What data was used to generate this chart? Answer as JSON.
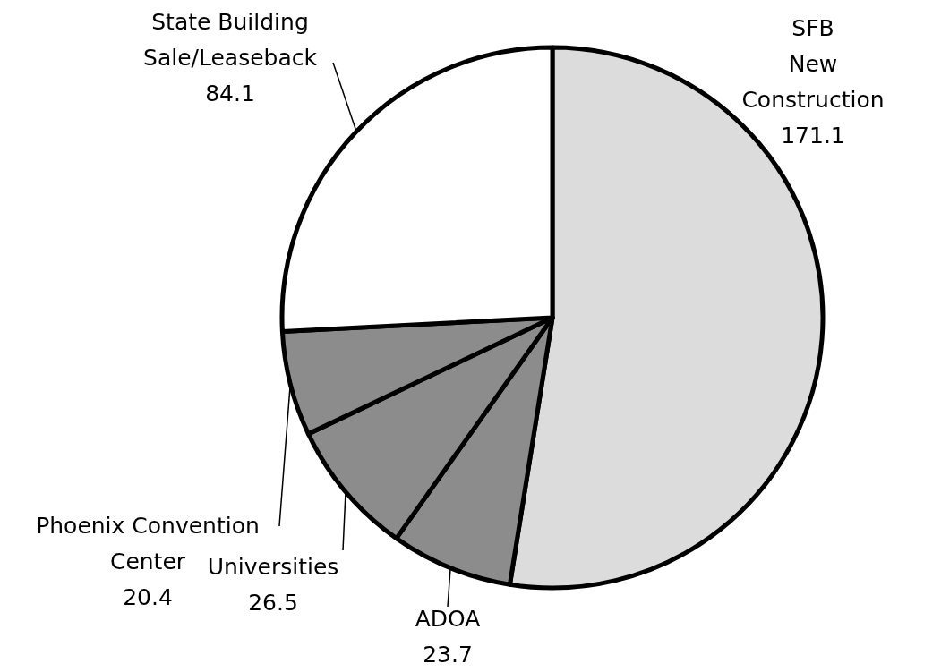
{
  "chart_data": {
    "type": "pie",
    "categories": [
      "SFB New Construction",
      "ADOA",
      "Universities",
      "Phoenix Convention Center",
      "State Building Sale/Leaseback"
    ],
    "values": [
      171.1,
      23.7,
      26.5,
      20.4,
      84.1
    ],
    "colors": [
      "#dcdcdc",
      "#8c8c8c",
      "#8c8c8c",
      "#8c8c8c",
      "#ffffff"
    ],
    "data_labels": true
  }
}
